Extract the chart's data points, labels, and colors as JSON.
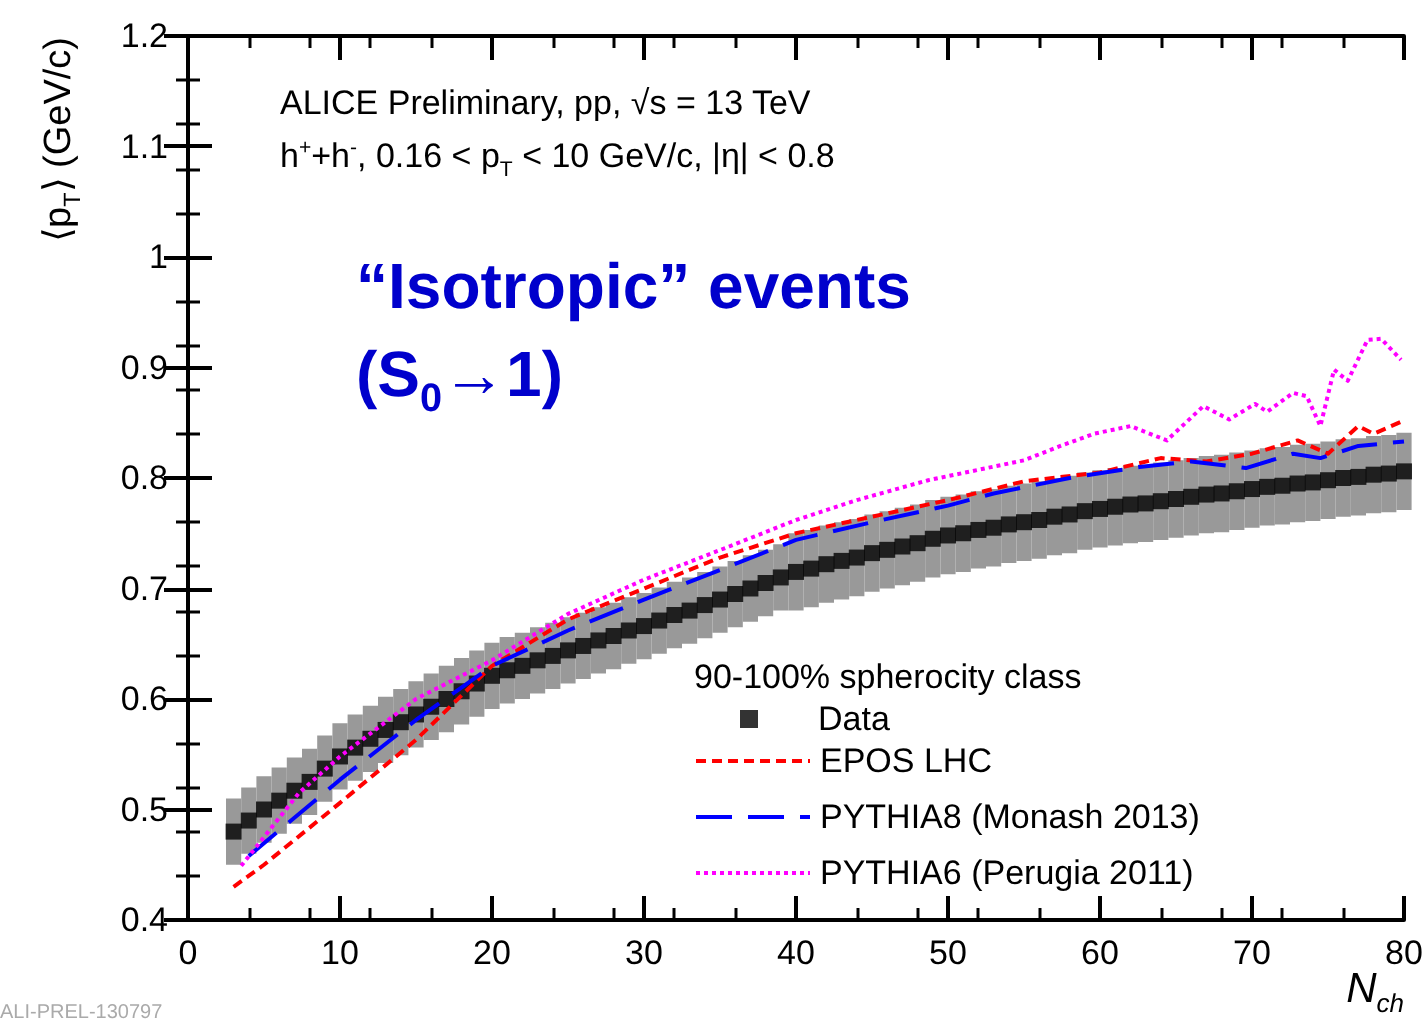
{
  "chart_data": {
    "type": "line",
    "xlabel": "N$_{ch}$",
    "ylabel": "⟨p$_{T}$⟩ (GeV/c)",
    "legend_title": "90-100% spherocity class",
    "annotations": [
      "ALICE Preliminary, pp, √s = 13 TeV",
      "h$^{+}$+h$^{-}$, 0.16 < p$_{T}$ < 10 GeV/c, |η| < 0.8",
      "“Isotropic” events",
      "(S$_{0}$→1)",
      "ALI-PREL-130797"
    ],
    "xlim": [
      0,
      80
    ],
    "xticks": [
      0,
      10,
      20,
      30,
      40,
      50,
      60,
      70,
      80
    ],
    "ylim": [
      0.4,
      1.2
    ],
    "yticks": [
      0.4,
      0.5,
      0.6,
      0.7,
      0.8,
      0.9,
      1,
      1.1,
      1.2
    ],
    "grid": false,
    "legend": "bottom right",
    "series": [
      {
        "name": "Data",
        "type": "scatter",
        "marker": "square",
        "color": "#000000",
        "x": [
          3,
          4,
          5,
          6,
          7,
          8,
          9,
          10,
          11,
          12,
          13,
          14,
          15,
          16,
          17,
          18,
          19,
          20,
          21,
          22,
          23,
          24,
          25,
          26,
          27,
          28,
          29,
          30,
          31,
          32,
          33,
          34,
          35,
          36,
          37,
          38,
          39,
          40,
          41,
          42,
          43,
          44,
          45,
          46,
          47,
          48,
          49,
          50,
          51,
          52,
          53,
          54,
          55,
          56,
          57,
          58,
          59,
          60,
          61,
          62,
          63,
          64,
          65,
          66,
          67,
          68,
          69,
          70,
          71,
          72,
          73,
          74,
          75,
          76,
          77,
          78,
          79,
          80
        ],
        "values": [
          0.48,
          0.49,
          0.5,
          0.508,
          0.517,
          0.525,
          0.537,
          0.548,
          0.556,
          0.564,
          0.572,
          0.579,
          0.586,
          0.593,
          0.6,
          0.607,
          0.614,
          0.621,
          0.626,
          0.63,
          0.635,
          0.639,
          0.644,
          0.648,
          0.653,
          0.657,
          0.662,
          0.666,
          0.671,
          0.676,
          0.68,
          0.685,
          0.69,
          0.695,
          0.7,
          0.705,
          0.71,
          0.715,
          0.718,
          0.722,
          0.725,
          0.728,
          0.732,
          0.735,
          0.738,
          0.741,
          0.745,
          0.748,
          0.75,
          0.753,
          0.755,
          0.758,
          0.76,
          0.762,
          0.765,
          0.767,
          0.77,
          0.772,
          0.774,
          0.776,
          0.777,
          0.779,
          0.781,
          0.783,
          0.785,
          0.786,
          0.788,
          0.79,
          0.792,
          0.793,
          0.795,
          0.796,
          0.798,
          0.8,
          0.801,
          0.803,
          0.804,
          0.806
        ],
        "errors": [
          0.03,
          0.03,
          0.03,
          0.03,
          0.03,
          0.03,
          0.03,
          0.03,
          0.03,
          0.03,
          0.03,
          0.03,
          0.03,
          0.03,
          0.03,
          0.03,
          0.03,
          0.03,
          0.03,
          0.03,
          0.03,
          0.03,
          0.03,
          0.03,
          0.03,
          0.03,
          0.03,
          0.03,
          0.03,
          0.03,
          0.03,
          0.03,
          0.03,
          0.03,
          0.03,
          0.03,
          0.03,
          0.035,
          0.035,
          0.035,
          0.035,
          0.035,
          0.035,
          0.035,
          0.035,
          0.035,
          0.035,
          0.035,
          0.035,
          0.035,
          0.035,
          0.035,
          0.035,
          0.035,
          0.035,
          0.035,
          0.035,
          0.035,
          0.035,
          0.035,
          0.035,
          0.035,
          0.035,
          0.035,
          0.035,
          0.035,
          0.035,
          0.035,
          0.035,
          0.035,
          0.035,
          0.035,
          0.035,
          0.035,
          0.035,
          0.035,
          0.035,
          0.035
        ]
      },
      {
        "name": "EPOS LHC",
        "line_style": "dashed",
        "color": "#ff0000",
        "x": [
          3,
          5,
          10,
          15,
          20,
          25,
          30,
          35,
          40,
          45,
          50,
          55,
          60,
          64,
          67,
          70,
          73,
          75,
          77,
          78,
          80
        ],
        "values": [
          0.43,
          0.45,
          0.506,
          0.563,
          0.63,
          0.672,
          0.7,
          0.728,
          0.75,
          0.765,
          0.78,
          0.797,
          0.805,
          0.818,
          0.815,
          0.822,
          0.834,
          0.822,
          0.847,
          0.84,
          0.852
        ]
      },
      {
        "name": "PYTHIA8 (Monash 2013)",
        "line_style": "dashed",
        "color": "#0000ff",
        "x": [
          4,
          10,
          15,
          20,
          25,
          30,
          35.6,
          40,
          45,
          50,
          53,
          58,
          62.6,
          66,
          69.6,
          72.7,
          74.5,
          77,
          80
        ],
        "values": [
          0.458,
          0.527,
          0.581,
          0.63,
          0.662,
          0.69,
          0.72,
          0.744,
          0.76,
          0.775,
          0.786,
          0.8,
          0.81,
          0.815,
          0.809,
          0.822,
          0.818,
          0.829,
          0.833
        ]
      },
      {
        "name": "PYTHIA6 (Perugia 2011)",
        "line_style": "dotted",
        "color": "#ff00ff",
        "x": [
          3.5,
          7.3,
          10,
          15,
          20,
          25,
          30,
          35.6,
          40,
          44,
          48.7,
          55,
          57.4,
          59.6,
          62,
          64.4,
          66.8,
          68.5,
          70.2,
          71,
          72.7,
          73.6,
          74.5,
          75.4,
          76.3,
          77.6,
          78.5,
          79.8
        ],
        "values": [
          0.449,
          0.515,
          0.548,
          0.6,
          0.635,
          0.677,
          0.708,
          0.738,
          0.762,
          0.78,
          0.798,
          0.816,
          0.829,
          0.84,
          0.847,
          0.834,
          0.865,
          0.853,
          0.867,
          0.86,
          0.877,
          0.874,
          0.847,
          0.898,
          0.888,
          0.925,
          0.926,
          0.907
        ]
      }
    ]
  }
}
